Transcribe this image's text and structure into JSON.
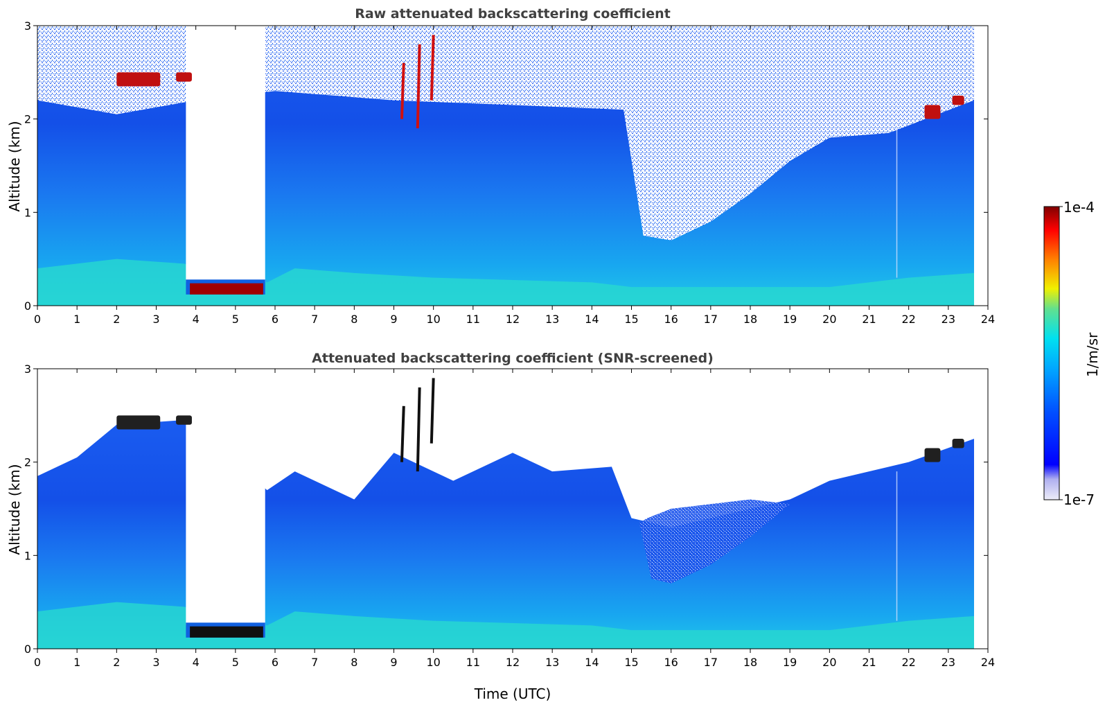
{
  "chart_data": [
    {
      "type": "heatmap",
      "title": "Raw attenuated backscattering coefficient",
      "xlabel": "",
      "ylabel": "Altitude (km)",
      "xlim": [
        0,
        24
      ],
      "ylim": [
        0,
        3
      ],
      "xticks": [
        "0",
        "1",
        "2",
        "3",
        "4",
        "5",
        "6",
        "7",
        "8",
        "9",
        "10",
        "11",
        "12",
        "13",
        "14",
        "15",
        "16",
        "17",
        "18",
        "19",
        "20",
        "21",
        "22",
        "23",
        "24"
      ],
      "yticks": [
        "0",
        "1",
        "2",
        "3"
      ],
      "data_extent_hours": 23.65,
      "features": [
        {
          "label": "cloud layer",
          "x": [
            2.0,
            3.1
          ],
          "y": [
            2.35,
            2.5
          ],
          "level": "high"
        },
        {
          "label": "cloud layer",
          "x": [
            3.5,
            3.9
          ],
          "y": [
            2.4,
            2.5
          ],
          "level": "high"
        },
        {
          "label": "low cloud (precip gap above)",
          "x": [
            3.75,
            5.75
          ],
          "y": [
            0.12,
            0.25
          ],
          "level": "very high"
        },
        {
          "label": "signal gap",
          "x": [
            3.75,
            5.75
          ],
          "y": [
            0.25,
            3.0
          ],
          "level": "none"
        },
        {
          "label": "elevated plumes",
          "x": [
            9.0,
            10.1
          ],
          "y": [
            1.9,
            2.9
          ],
          "level": "high"
        },
        {
          "label": "noisy region",
          "x": [
            14.9,
            19.5
          ],
          "y": [
            0.7,
            3.0
          ],
          "level": "noise"
        },
        {
          "label": "cloud top",
          "x": [
            22.4,
            23.4
          ],
          "y": [
            2.0,
            2.2
          ],
          "level": "high"
        }
      ]
    },
    {
      "type": "heatmap",
      "title": "Attenuated backscattering coefficient (SNR-screened)",
      "xlabel": "Time (UTC)",
      "ylabel": "Altitude (km)",
      "xlim": [
        0,
        24
      ],
      "ylim": [
        0,
        3
      ],
      "xticks": [
        "0",
        "1",
        "2",
        "3",
        "4",
        "5",
        "6",
        "7",
        "8",
        "9",
        "10",
        "11",
        "12",
        "13",
        "14",
        "15",
        "16",
        "17",
        "18",
        "19",
        "20",
        "21",
        "22",
        "23",
        "24"
      ],
      "yticks": [
        "0",
        "1",
        "2",
        "3"
      ],
      "data_extent_hours": 23.65,
      "screened_top_km": [
        [
          0.0,
          1.85
        ],
        [
          1.0,
          2.05
        ],
        [
          2.0,
          2.4
        ],
        [
          3.7,
          2.45
        ],
        [
          5.8,
          1.7
        ],
        [
          6.5,
          1.9
        ],
        [
          8.0,
          1.6
        ],
        [
          9.0,
          2.1
        ],
        [
          10.5,
          1.8
        ],
        [
          12.0,
          2.1
        ],
        [
          13.0,
          1.9
        ],
        [
          14.5,
          1.95
        ],
        [
          15.0,
          1.4
        ],
        [
          16.0,
          1.3
        ],
        [
          18.0,
          1.5
        ],
        [
          19.0,
          1.6
        ],
        [
          20.0,
          1.8
        ],
        [
          22.0,
          2.0
        ],
        [
          23.65,
          2.25
        ]
      ]
    }
  ],
  "colorbar": {
    "label": "1/m/sr",
    "max_label": "1e-4",
    "min_label": "1e-7",
    "scale": "log",
    "colormap": [
      "#e6e6f5",
      "#0000ff",
      "#0080ff",
      "#00d0ff",
      "#40e0b0",
      "#f0f000",
      "#ff8000",
      "#ff0000",
      "#800000"
    ]
  },
  "colors": {
    "background": "#1868ec",
    "noise": "#ffffff",
    "title": "#404040"
  }
}
